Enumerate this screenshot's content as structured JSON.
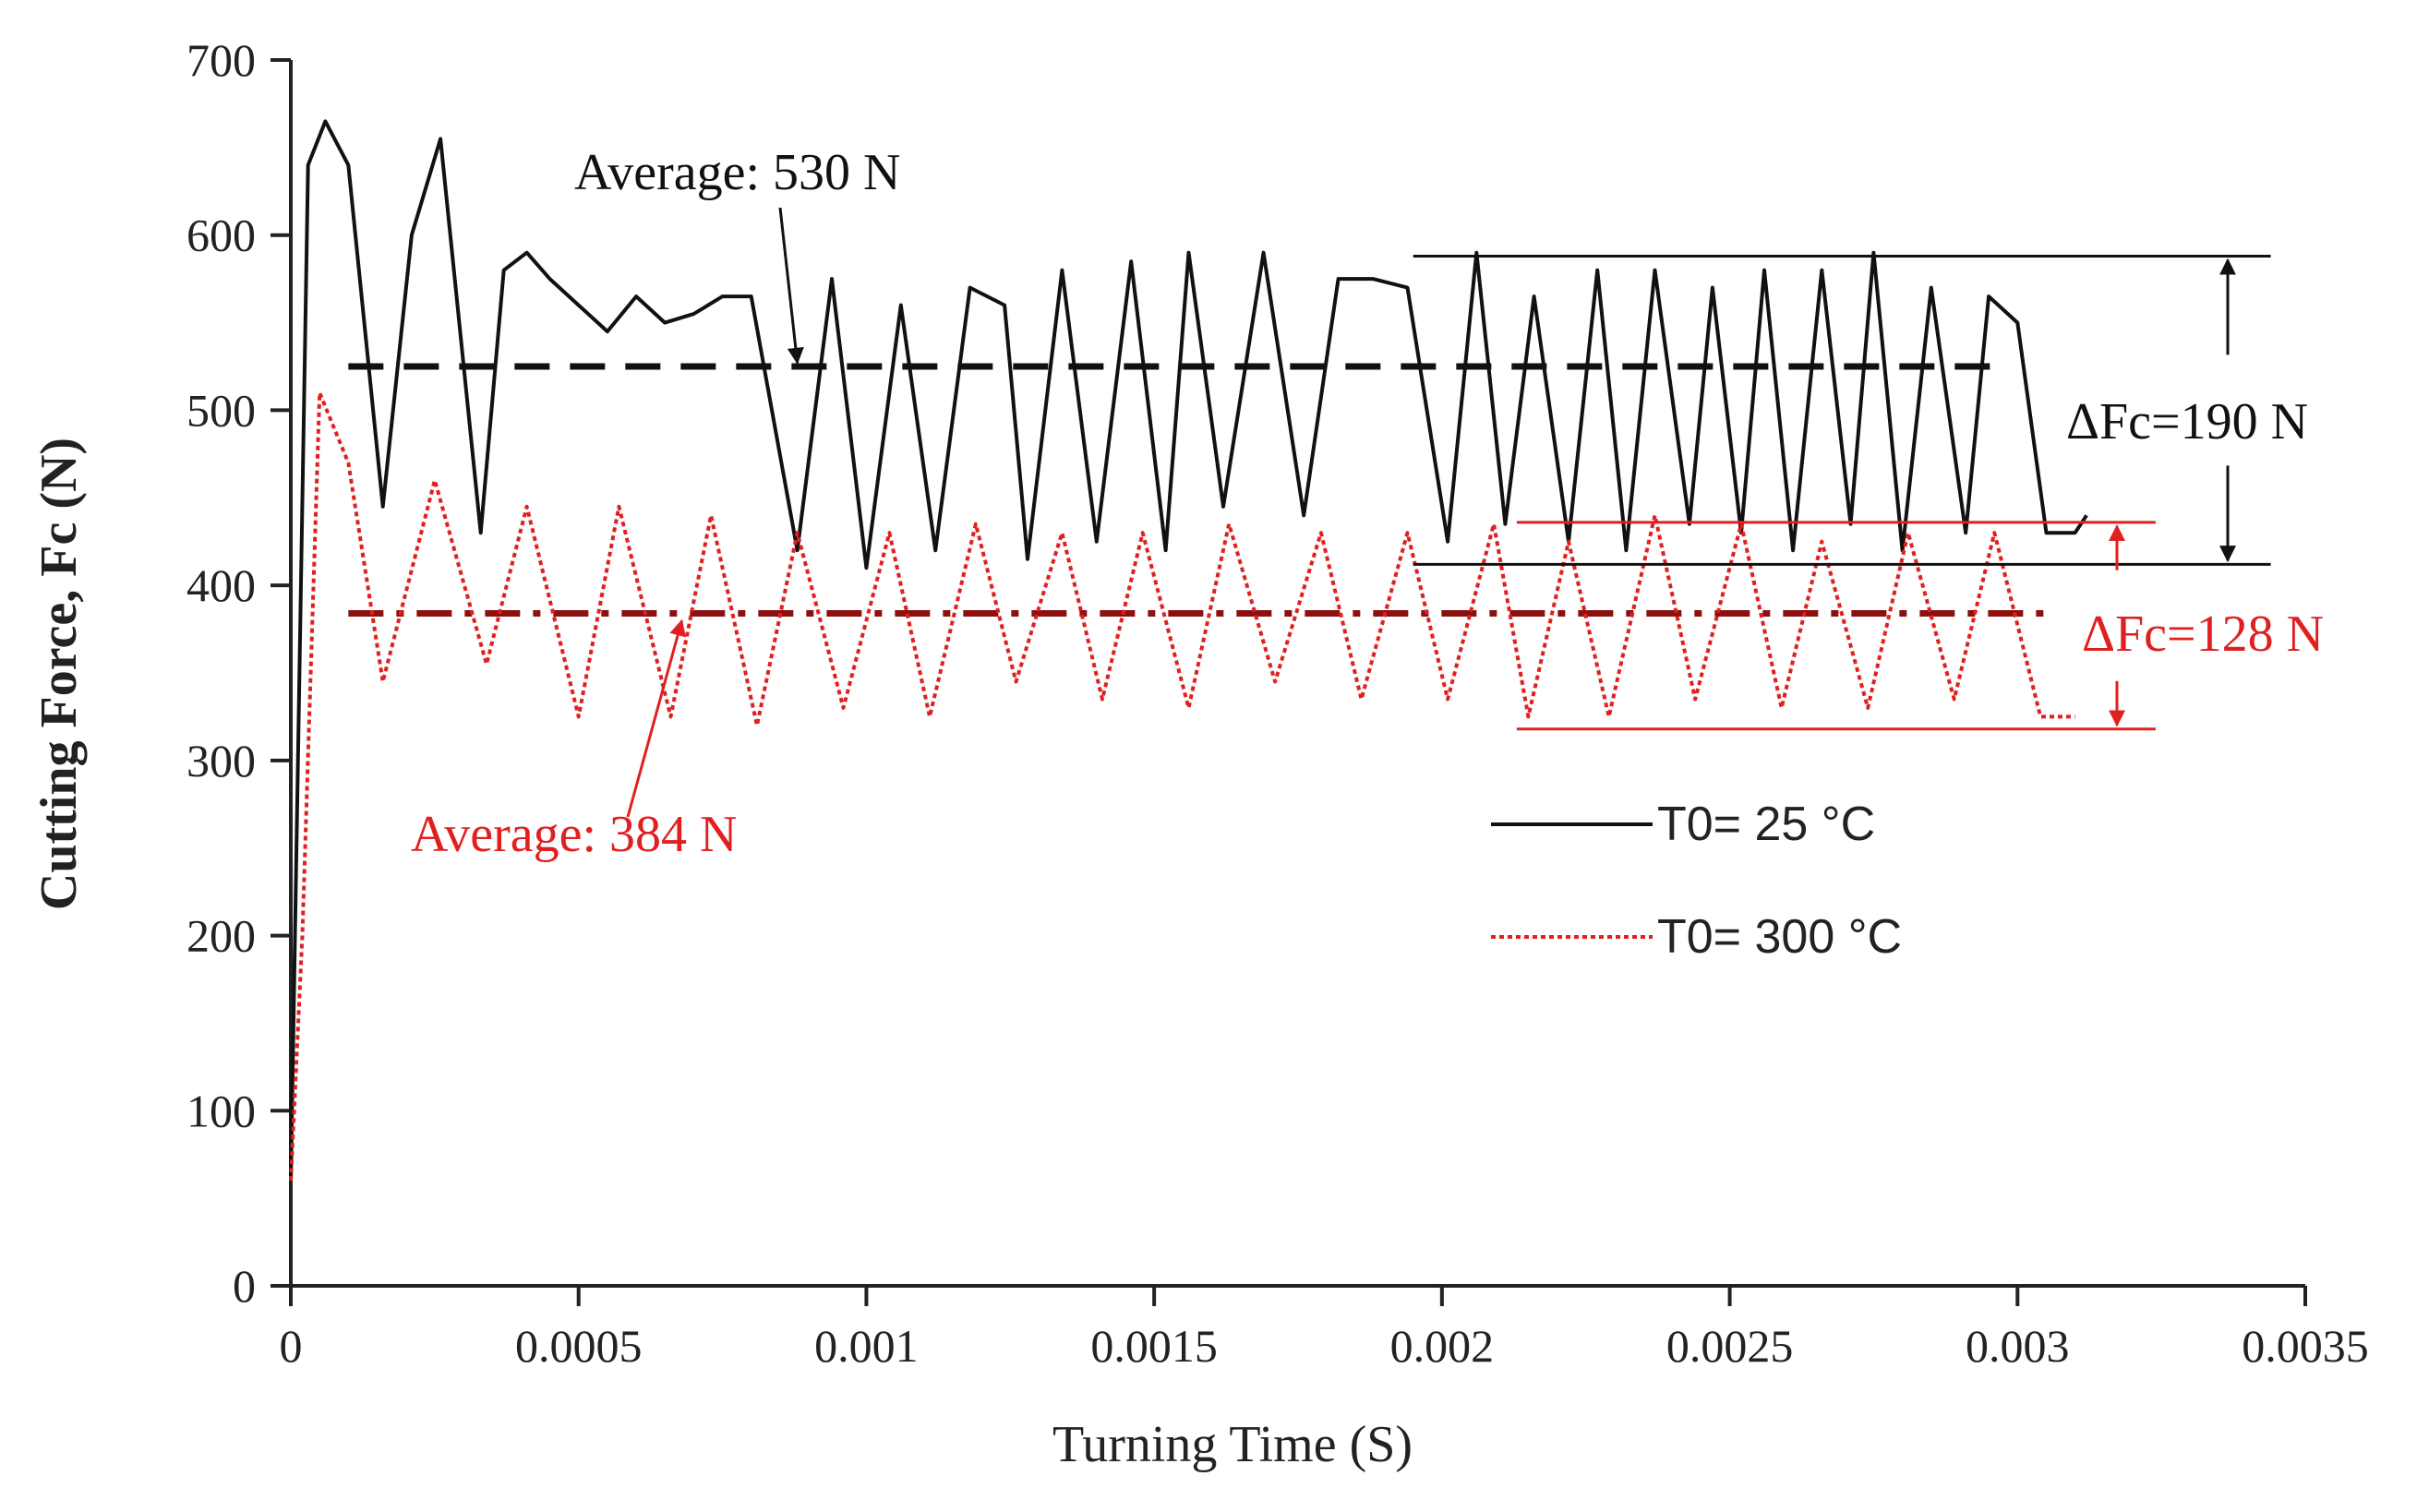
{
  "chart_data": {
    "type": "line",
    "title": "",
    "xlabel": "Turning Time  (S)",
    "ylabel": "Cutting Force, Fc (N)",
    "xlim": [
      0,
      0.0035
    ],
    "ylim": [
      0,
      700
    ],
    "x_ticks": [
      "0",
      "0.0005",
      "0.001",
      "0.0015",
      "0.002",
      "0.0025",
      "0.003",
      "0.0035"
    ],
    "x_tick_values": [
      0,
      0.0005,
      0.001,
      0.0015,
      0.002,
      0.0025,
      0.003,
      0.0035
    ],
    "y_ticks": [
      "0",
      "100",
      "200",
      "300",
      "400",
      "500",
      "600",
      "700"
    ],
    "y_tick_values": [
      0,
      100,
      200,
      300,
      400,
      500,
      600,
      700
    ],
    "grid": false,
    "legend_position": "center-right",
    "series": [
      {
        "name": "T0= 25 °C",
        "color": "#111111",
        "style": "solid",
        "x": [
          0,
          3e-05,
          6e-05,
          0.0001,
          0.00016,
          0.00021,
          0.00026,
          0.00033,
          0.00037,
          0.00041,
          0.00045,
          0.0005,
          0.00055,
          0.0006,
          0.00065,
          0.0007,
          0.00075,
          0.0008,
          0.00088,
          0.00094,
          0.001,
          0.00106,
          0.00112,
          0.00118,
          0.00124,
          0.00128,
          0.00134,
          0.0014,
          0.00146,
          0.00152,
          0.00156,
          0.00162,
          0.00169,
          0.00176,
          0.00182,
          0.00188,
          0.00194,
          0.00201,
          0.00206,
          0.00211,
          0.00216,
          0.00222,
          0.00227,
          0.00232,
          0.00237,
          0.00243,
          0.00247,
          0.00252,
          0.00256,
          0.00261,
          0.00266,
          0.00271,
          0.00275,
          0.0028,
          0.00285,
          0.00291,
          0.00295,
          0.003,
          0.00305,
          0.0031,
          0.00312
        ],
        "values": [
          60,
          640,
          665,
          640,
          445,
          600,
          655,
          430,
          580,
          590,
          575,
          560,
          545,
          565,
          550,
          555,
          565,
          565,
          420,
          575,
          410,
          560,
          420,
          570,
          560,
          415,
          580,
          425,
          585,
          420,
          590,
          445,
          590,
          440,
          575,
          575,
          570,
          425,
          590,
          435,
          565,
          425,
          580,
          420,
          580,
          435,
          570,
          430,
          580,
          420,
          580,
          435,
          590,
          420,
          570,
          430,
          565,
          550,
          430,
          430,
          440
        ],
        "average": 530
      },
      {
        "name": "T0= 300 °C",
        "color": "#e02020",
        "style": "dotted",
        "x": [
          0,
          2e-05,
          5e-05,
          0.0001,
          0.00016,
          0.00025,
          0.00034,
          0.00041,
          0.0005,
          0.00057,
          0.00066,
          0.00073,
          0.00081,
          0.00088,
          0.00096,
          0.00104,
          0.00111,
          0.00119,
          0.00126,
          0.00134,
          0.00141,
          0.00148,
          0.00156,
          0.00163,
          0.00171,
          0.00179,
          0.00186,
          0.00194,
          0.00201,
          0.00209,
          0.00215,
          0.00222,
          0.00229,
          0.00237,
          0.00244,
          0.00252,
          0.00259,
          0.00266,
          0.00274,
          0.00281,
          0.00289,
          0.00296,
          0.00304,
          0.0031
        ],
        "values": [
          60,
          200,
          510,
          470,
          345,
          460,
          355,
          445,
          325,
          445,
          325,
          440,
          320,
          430,
          330,
          430,
          325,
          435,
          345,
          430,
          335,
          430,
          330,
          435,
          345,
          430,
          335,
          430,
          335,
          435,
          325,
          425,
          325,
          440,
          335,
          435,
          330,
          425,
          330,
          430,
          335,
          430,
          325,
          325
        ],
        "average": 384
      }
    ],
    "averages": [
      {
        "series": "T0= 25 °C",
        "value": 530,
        "color": "#111111"
      },
      {
        "series": "T0= 300 °C",
        "value": 384,
        "color": "#8b1010"
      }
    ],
    "annotations": [
      {
        "id": "avg_black",
        "text": "Average: 530 N",
        "color": "#111111",
        "target_x": 0.00088,
        "target_y": 525
      },
      {
        "id": "avg_red",
        "text": "Average: 384 N",
        "color": "#e02020",
        "target_x": 0.00066,
        "target_y": 384
      },
      {
        "id": "delta_black",
        "text": "ΔFc=190 N",
        "color": "#111111",
        "x_start": 0.00195,
        "x_end": 0.00344,
        "y_low": 412,
        "y_high": 588
      },
      {
        "id": "delta_red",
        "text": "ΔFc=128 N",
        "color": "#e02020",
        "x_start": 0.00213,
        "x_end": 0.00324,
        "y_low": 318,
        "y_high": 436
      }
    ]
  }
}
